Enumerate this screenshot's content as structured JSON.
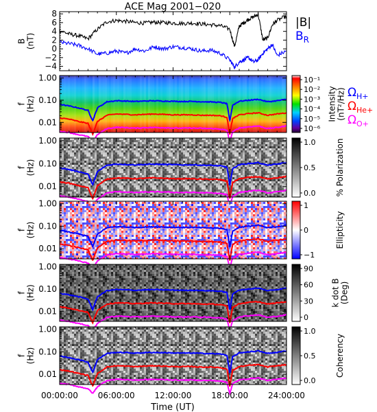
{
  "chart_data": [
    {
      "type": "line",
      "title": "ACE Mag 2001−020",
      "ylabel": "B\n(nT)",
      "ylim": [
        -5,
        8.5
      ],
      "yticks": [
        8,
        6,
        4,
        2,
        0,
        -2,
        -4
      ],
      "legend": [
        {
          "name": "|B|",
          "color": "#000000"
        },
        {
          "name": "B_R",
          "color": "#0000ff"
        }
      ],
      "x_hours": [
        0,
        1,
        2,
        3,
        4,
        5,
        6,
        7,
        8,
        9,
        10,
        11,
        12,
        13,
        14,
        15,
        16,
        17,
        18,
        18.5,
        19,
        19.5,
        20,
        20.5,
        21,
        21.5,
        22,
        22.5,
        23,
        24
      ],
      "series": [
        {
          "name": "|B|",
          "color": "#000000",
          "values": [
            4.2,
            3.4,
            3.0,
            2.3,
            4.5,
            6.2,
            6.5,
            6.3,
            6.0,
            5.9,
            6.1,
            6.0,
            5.9,
            5.8,
            5.9,
            5.7,
            5.5,
            5.3,
            4.5,
            0.5,
            5.2,
            6.0,
            6.8,
            7.3,
            7.9,
            2.0,
            2.5,
            5.5,
            6.5,
            7.5
          ]
        },
        {
          "name": "B_R",
          "color": "#0000ff",
          "values": [
            1.5,
            1.2,
            0.8,
            0.0,
            -1.2,
            -1.0,
            -0.5,
            -1.0,
            0.0,
            -0.5,
            0.5,
            0.0,
            0.5,
            0.3,
            0.0,
            -0.5,
            -0.3,
            -1.0,
            -2.5,
            -4.2,
            -3.0,
            -2.5,
            -2.0,
            -3.0,
            -2.5,
            -1.0,
            0.0,
            1.0,
            -1.5,
            -0.5
          ]
        }
      ]
    },
    {
      "type": "heatmap",
      "ylabel": "f\n(Hz)",
      "yticks": [
        "1.00",
        "0.10",
        "0.01"
      ],
      "colorbar_label": "Intensity\n(nT²/Hz)",
      "colorbar_ticks": [
        "10⁻¹",
        "10⁻²",
        "10⁻³",
        "10⁻⁴",
        "10⁻⁵",
        "10⁻⁶"
      ],
      "colorscale": "rainbow",
      "legend": [
        {
          "name": "ΩH+",
          "color": "#0000ff"
        },
        {
          "name": "ΩHe+",
          "color": "#ff0000"
        },
        {
          "name": "ΩO+",
          "color": "#ff00ff"
        }
      ]
    },
    {
      "type": "heatmap",
      "ylabel": "f\n(Hz)",
      "yticks": [
        "1.00",
        "0.10",
        "0.01"
      ],
      "colorbar_label": "% Polarization",
      "colorbar_ticks": [
        "1.0",
        "0.5",
        "0.0"
      ],
      "colorscale": "gray"
    },
    {
      "type": "heatmap",
      "ylabel": "f\n(Hz)",
      "yticks": [
        "1.00",
        "0.10",
        "0.01"
      ],
      "colorbar_label": "Ellipticity",
      "colorbar_ticks": [
        "1",
        "0",
        "−1"
      ],
      "colorscale": "bwr"
    },
    {
      "type": "heatmap",
      "ylabel": "f\n(Hz)",
      "yticks": [
        "1.00",
        "0.10",
        "0.01"
      ],
      "colorbar_label": "k dot B\n(Deg)",
      "colorbar_ticks": [
        "90",
        "60",
        "30",
        "0"
      ],
      "colorscale": "gray"
    },
    {
      "type": "heatmap",
      "ylabel": "f\n(Hz)",
      "yticks": [
        "1.00",
        "0.10",
        "0.01"
      ],
      "colorbar_label": "Coherency",
      "colorbar_ticks": [
        "1.0",
        "0.5",
        "0.0"
      ],
      "colorscale": "gray"
    }
  ],
  "gyro_lines": {
    "x_hours": [
      0,
      1,
      2,
      3,
      3.5,
      4,
      5,
      6,
      7,
      8,
      9,
      10,
      11,
      12,
      13,
      14,
      15,
      16,
      17,
      17.7,
      18,
      18.3,
      19,
      20,
      21,
      22,
      23,
      24
    ],
    "H_hz": [
      0.065,
      0.055,
      0.045,
      0.035,
      0.012,
      0.045,
      0.085,
      0.095,
      0.092,
      0.088,
      0.092,
      0.094,
      0.092,
      0.09,
      0.088,
      0.089,
      0.086,
      0.084,
      0.08,
      0.07,
      0.012,
      0.06,
      0.09,
      0.1,
      0.11,
      0.085,
      0.095,
      0.11
    ],
    "He_hz": [
      0.016,
      0.014,
      0.011,
      0.009,
      0.003,
      0.011,
      0.021,
      0.024,
      0.023,
      0.022,
      0.023,
      0.024,
      0.023,
      0.022,
      0.022,
      0.022,
      0.021,
      0.021,
      0.02,
      0.017,
      0.003,
      0.015,
      0.022,
      0.025,
      0.027,
      0.021,
      0.024,
      0.027
    ],
    "O_hz": [
      0.004,
      0.0035,
      0.0028,
      0.0023,
      0.0014,
      0.0028,
      0.0053,
      0.006,
      0.0058,
      0.0055,
      0.0058,
      0.0059,
      0.0058,
      0.0056,
      0.0055,
      0.0056,
      0.0054,
      0.0053,
      0.005,
      0.0044,
      0.0014,
      0.0038,
      0.0056,
      0.0063,
      0.0069,
      0.0053,
      0.0059,
      0.0069
    ]
  },
  "xaxis": {
    "label": "Time (UT)",
    "ticks": [
      "00:00:00",
      "06:00:00",
      "12:00:00",
      "18:00:00",
      "24:00:00"
    ],
    "tick_hours": [
      0,
      6,
      12,
      18,
      24
    ],
    "range_hours": [
      0,
      24
    ]
  },
  "yaxis_freq_range_hz": [
    0.0035,
    1.3
  ]
}
